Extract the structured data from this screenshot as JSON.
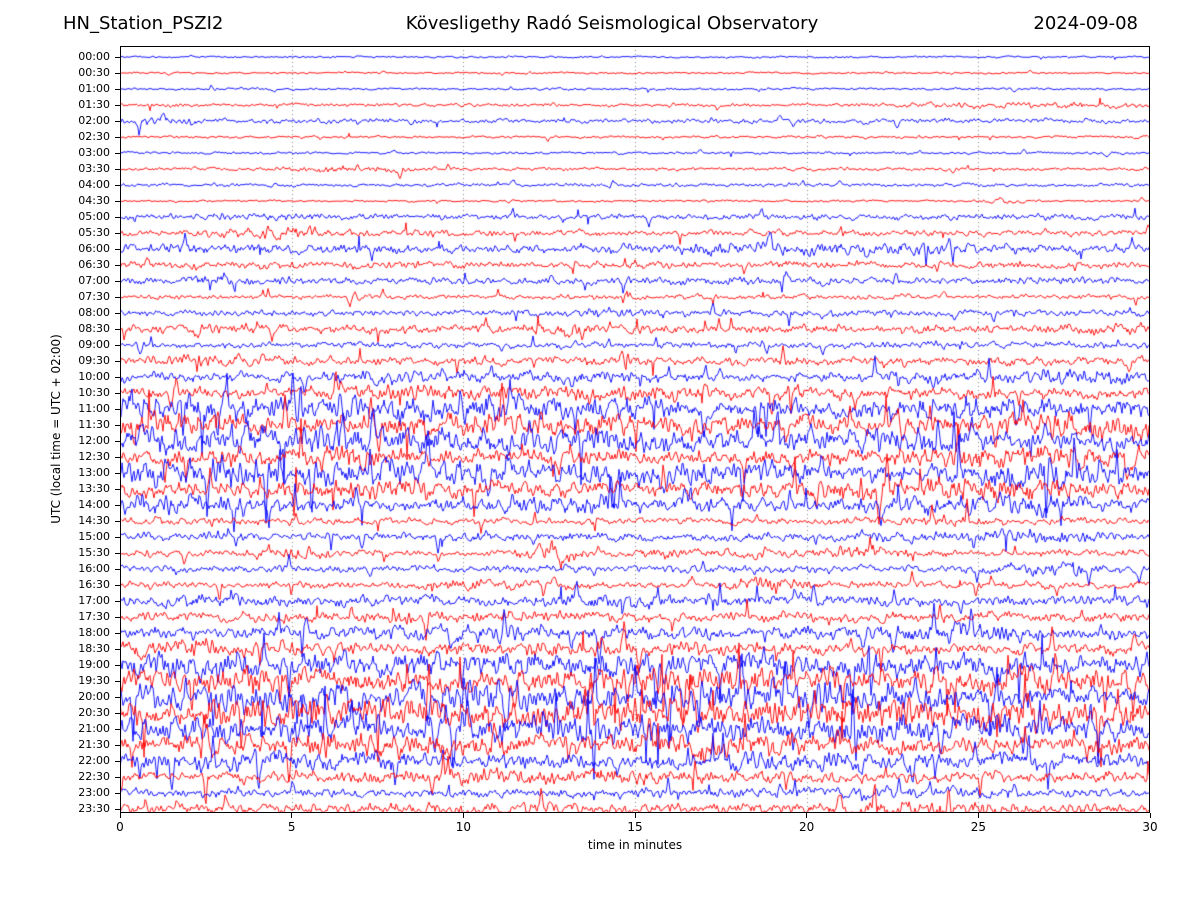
{
  "header": {
    "station": "HN_Station_PSZI2",
    "observatory": "Kövesligethy Radó Seismological Observatory",
    "date": "2024-09-08"
  },
  "chart_data": {
    "type": "line",
    "subtype": "helicorder-dayplot",
    "title": "Kövesligethy Radó Seismological Observatory",
    "station": "HN_Station_PSZI2",
    "date": "2024-09-08",
    "xlabel": "time in minutes",
    "ylabel": "UTC (local time = UTC + 02:00)",
    "x_range": [
      0,
      30
    ],
    "x_ticks": [
      0,
      5,
      10,
      15,
      20,
      25,
      30
    ],
    "grid": "vertical-dotted-at-major-ticks",
    "grid_color": "#888888",
    "frame_color": "#000000",
    "trace_colors": {
      "blue": "#0000ff",
      "red": "#ff0000"
    },
    "minutes_per_row": 30,
    "rows": [
      {
        "time": "00:00",
        "color": "blue",
        "amp": 0.9,
        "bursts": []
      },
      {
        "time": "00:30",
        "color": "red",
        "amp": 0.9,
        "bursts": []
      },
      {
        "time": "01:00",
        "color": "blue",
        "amp": 1.1,
        "bursts": []
      },
      {
        "time": "01:30",
        "color": "red",
        "amp": 1.6,
        "bursts": [
          [
            27,
            2.5,
            1.5
          ]
        ]
      },
      {
        "time": "02:00",
        "color": "blue",
        "amp": 2.2,
        "bursts": [
          [
            1,
            1.5,
            1.5
          ]
        ]
      },
      {
        "time": "02:30",
        "color": "red",
        "amp": 1.2,
        "bursts": []
      },
      {
        "time": "03:00",
        "color": "blue",
        "amp": 1.2,
        "bursts": []
      },
      {
        "time": "03:30",
        "color": "red",
        "amp": 1.4,
        "bursts": [
          [
            6.8,
            1.2,
            2.5
          ]
        ]
      },
      {
        "time": "04:00",
        "color": "blue",
        "amp": 1.6,
        "bursts": []
      },
      {
        "time": "04:30",
        "color": "red",
        "amp": 1.0,
        "bursts": [
          [
            25.8,
            0.5,
            1.5
          ]
        ]
      },
      {
        "time": "05:00",
        "color": "blue",
        "amp": 2.6,
        "bursts": [
          [
            4.5,
            1.0,
            1.5
          ]
        ]
      },
      {
        "time": "05:30",
        "color": "red",
        "amp": 2.8,
        "bursts": [
          [
            4.7,
            1.0,
            3.5
          ]
        ]
      },
      {
        "time": "06:00",
        "color": "blue",
        "amp": 4.2,
        "bursts": [
          [
            19.5,
            2.0,
            2.0
          ],
          [
            23,
            1.5,
            2.0
          ]
        ]
      },
      {
        "time": "06:30",
        "color": "red",
        "amp": 3.2,
        "bursts": []
      },
      {
        "time": "07:00",
        "color": "blue",
        "amp": 3.4,
        "bursts": [
          [
            3.5,
            1.0,
            2.5
          ]
        ]
      },
      {
        "time": "07:30",
        "color": "red",
        "amp": 2.2,
        "bursts": []
      },
      {
        "time": "08:00",
        "color": "blue",
        "amp": 3.0,
        "bursts": [
          [
            14.5,
            1.0,
            2.0
          ]
        ]
      },
      {
        "time": "08:30",
        "color": "red",
        "amp": 3.8,
        "bursts": [
          [
            13,
            0.8,
            3.0
          ],
          [
            28.5,
            1.0,
            2.0
          ]
        ]
      },
      {
        "time": "09:00",
        "color": "blue",
        "amp": 3.0,
        "bursts": []
      },
      {
        "time": "09:30",
        "color": "red",
        "amp": 3.8,
        "bursts": [
          [
            2.5,
            1.0,
            2.0
          ]
        ]
      },
      {
        "time": "10:00",
        "color": "blue",
        "amp": 4.2,
        "bursts": [
          [
            7.5,
            1.0,
            3.0
          ],
          [
            13.5,
            1.2,
            3.0
          ],
          [
            23.5,
            1.0,
            2.5
          ],
          [
            28,
            1.5,
            3.0
          ]
        ]
      },
      {
        "time": "10:30",
        "color": "red",
        "amp": 5.0,
        "bursts": [
          [
            8,
            2.0,
            3.0
          ],
          [
            14.5,
            1.5,
            4.0
          ],
          [
            20,
            1.0,
            2.0
          ]
        ]
      },
      {
        "time": "11:00",
        "color": "blue",
        "amp": 8.0,
        "bursts": [
          [
            2,
            2.0,
            4.0
          ],
          [
            7.5,
            2.0,
            5.0
          ],
          [
            13,
            2.0,
            4.0
          ],
          [
            25.5,
            2.0,
            4.0
          ]
        ]
      },
      {
        "time": "11:30",
        "color": "red",
        "amp": 7.5,
        "bursts": [
          [
            1,
            1.5,
            4.0
          ],
          [
            11,
            3.0,
            4.0
          ],
          [
            28,
            2.0,
            5.0
          ]
        ]
      },
      {
        "time": "12:00",
        "color": "blue",
        "amp": 8.0,
        "bursts": [
          [
            4,
            3.0,
            5.0
          ],
          [
            13,
            3.0,
            4.0
          ],
          [
            22,
            2.0,
            4.0
          ]
        ]
      },
      {
        "time": "12:30",
        "color": "red",
        "amp": 6.5,
        "bursts": [
          [
            6,
            2.0,
            4.0
          ],
          [
            26,
            3.0,
            5.0
          ]
        ]
      },
      {
        "time": "13:00",
        "color": "blue",
        "amp": 8.0,
        "bursts": [
          [
            2,
            2.0,
            5.0
          ],
          [
            9,
            3.0,
            5.0
          ],
          [
            17,
            2.0,
            4.0
          ],
          [
            27,
            2.0,
            5.0
          ]
        ]
      },
      {
        "time": "13:30",
        "color": "red",
        "amp": 6.5,
        "bursts": [
          [
            7.5,
            2.0,
            4.0
          ],
          [
            21,
            2.0,
            3.0
          ],
          [
            26,
            2.0,
            4.0
          ]
        ]
      },
      {
        "time": "14:00",
        "color": "blue",
        "amp": 6.0,
        "bursts": [
          [
            1,
            2.0,
            4.0
          ],
          [
            12,
            2.0,
            3.0
          ],
          [
            25,
            2.0,
            4.0
          ]
        ]
      },
      {
        "time": "14:30",
        "color": "red",
        "amp": 3.2,
        "bursts": [
          [
            24.3,
            0.7,
            4.0
          ]
        ]
      },
      {
        "time": "15:00",
        "color": "blue",
        "amp": 3.8,
        "bursts": [
          [
            10.5,
            1.0,
            2.0
          ],
          [
            26.5,
            1.5,
            3.0
          ]
        ]
      },
      {
        "time": "15:30",
        "color": "red",
        "amp": 3.0,
        "bursts": [
          [
            5.2,
            0.8,
            3.0
          ],
          [
            12.7,
            0.5,
            6.0
          ],
          [
            16.5,
            1.5,
            2.0
          ],
          [
            21.5,
            1.0,
            3.0
          ]
        ]
      },
      {
        "time": "16:00",
        "color": "blue",
        "amp": 3.4,
        "bursts": [
          [
            27,
            1.0,
            2.0
          ]
        ]
      },
      {
        "time": "16:30",
        "color": "red",
        "amp": 3.2,
        "bursts": [
          [
            10.5,
            1.0,
            2.0
          ],
          [
            19,
            0.7,
            5.0
          ]
        ]
      },
      {
        "time": "17:00",
        "color": "blue",
        "amp": 4.8,
        "bursts": [
          [
            3,
            1.5,
            2.0
          ],
          [
            15,
            2.0,
            2.0
          ]
        ]
      },
      {
        "time": "17:30",
        "color": "red",
        "amp": 4.4,
        "bursts": [
          [
            10,
            2.0,
            2.0
          ]
        ]
      },
      {
        "time": "18:00",
        "color": "blue",
        "amp": 5.5,
        "bursts": [
          [
            10,
            2.0,
            3.0
          ],
          [
            24,
            2.0,
            3.0
          ]
        ]
      },
      {
        "time": "18:30",
        "color": "red",
        "amp": 5.5,
        "bursts": [
          [
            2,
            2.0,
            3.0
          ],
          [
            14,
            2.0,
            3.0
          ]
        ]
      },
      {
        "time": "19:00",
        "color": "blue",
        "amp": 8.5,
        "bursts": [
          [
            3,
            3.0,
            4.0
          ],
          [
            12,
            3.0,
            4.0
          ],
          [
            22,
            3.0,
            4.0
          ]
        ]
      },
      {
        "time": "19:30",
        "color": "red",
        "amp": 9.0,
        "bursts": [
          [
            5,
            3.0,
            4.0
          ],
          [
            16,
            3.0,
            4.0
          ],
          [
            27,
            2.0,
            4.0
          ]
        ]
      },
      {
        "time": "20:00",
        "color": "blue",
        "amp": 9.5,
        "bursts": [
          [
            2,
            2.0,
            4.0
          ],
          [
            10,
            3.0,
            5.0
          ],
          [
            20,
            3.0,
            4.0
          ]
        ]
      },
      {
        "time": "20:30",
        "color": "red",
        "amp": 9.5,
        "bursts": [
          [
            6,
            3.0,
            5.0
          ],
          [
            15,
            3.0,
            4.0
          ],
          [
            25,
            3.0,
            5.0
          ]
        ]
      },
      {
        "time": "21:00",
        "color": "blue",
        "amp": 9.0,
        "bursts": [
          [
            4,
            3.0,
            4.0
          ],
          [
            13,
            3.0,
            4.0
          ],
          [
            23,
            3.0,
            4.0
          ]
        ]
      },
      {
        "time": "21:30",
        "color": "red",
        "amp": 7.5,
        "bursts": [
          [
            8,
            3.0,
            4.0
          ],
          [
            18,
            3.0,
            4.0
          ]
        ]
      },
      {
        "time": "22:00",
        "color": "blue",
        "amp": 6.5,
        "bursts": [
          [
            5,
            3.0,
            3.0
          ],
          [
            20,
            3.0,
            3.0
          ]
        ]
      },
      {
        "time": "22:30",
        "color": "red",
        "amp": 5.0,
        "bursts": [
          [
            12,
            3.0,
            3.0
          ]
        ]
      },
      {
        "time": "23:00",
        "color": "blue",
        "amp": 4.0,
        "bursts": [
          [
            22,
            2.0,
            2.0
          ]
        ]
      },
      {
        "time": "23:30",
        "color": "red",
        "amp": 5.0,
        "bursts": [
          [
            10,
            2.0,
            2.0
          ],
          [
            23,
            2.0,
            3.0
          ]
        ]
      }
    ]
  }
}
